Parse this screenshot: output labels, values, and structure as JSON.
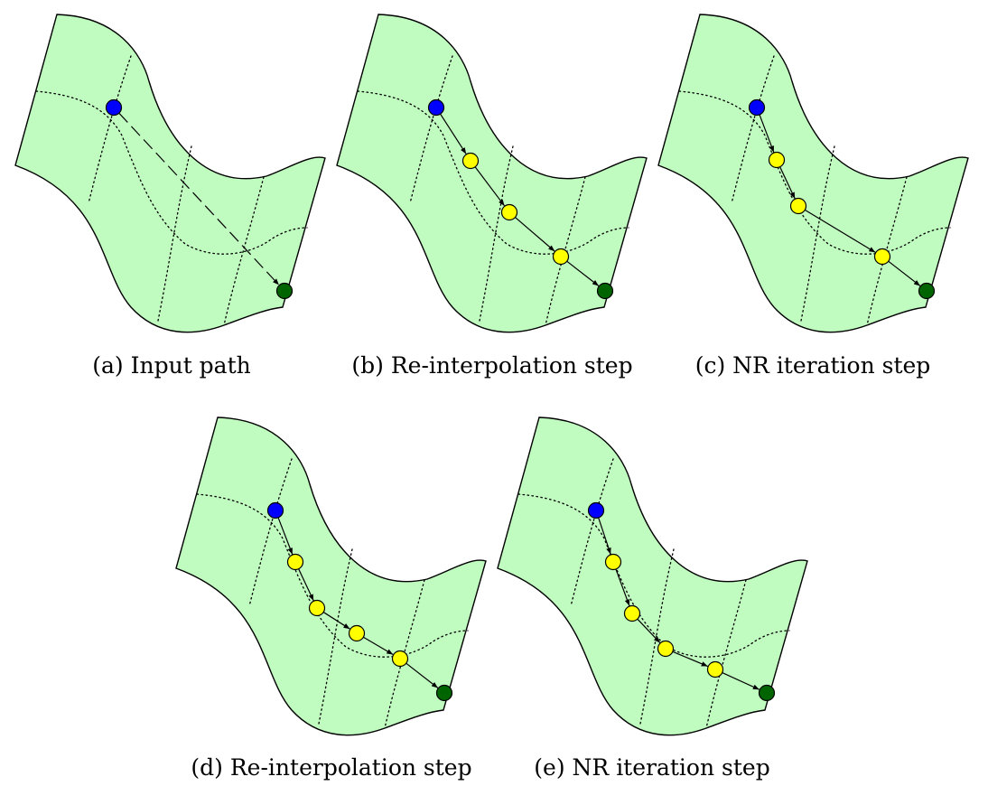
{
  "colors": {
    "surface": "#c0fbc0",
    "start_node": "#0000ff",
    "end_node": "#006400",
    "intermediate_node": "#ffff00"
  },
  "panels": [
    {
      "id": "a",
      "caption": "(a) Input path",
      "style": "dashed",
      "points": [
        [
          126,
          119
        ],
        [
          315,
          322
        ]
      ]
    },
    {
      "id": "b",
      "caption": "(b) Re-interpolation step",
      "style": "arrows",
      "points": [
        [
          483,
          119
        ],
        [
          521,
          178
        ],
        [
          564,
          235
        ],
        [
          621,
          284
        ],
        [
          670,
          322
        ]
      ]
    },
    {
      "id": "c",
      "caption": "(c) NR iteration step",
      "style": "arrows",
      "points": [
        [
          838,
          119
        ],
        [
          860,
          177
        ],
        [
          884,
          228
        ],
        [
          977,
          284
        ],
        [
          1026,
          322
        ]
      ]
    },
    {
      "id": "d",
      "caption": "(d) Re-interpolation step",
      "style": "arrows",
      "points": [
        [
          305,
          565
        ],
        [
          327,
          622
        ],
        [
          351,
          673
        ],
        [
          395,
          701
        ],
        [
          443,
          729
        ],
        [
          492,
          767
        ]
      ]
    },
    {
      "id": "e",
      "caption": "(e) NR iteration step",
      "style": "arrows",
      "points": [
        [
          660,
          565
        ],
        [
          679,
          622
        ],
        [
          700,
          679
        ],
        [
          737,
          718
        ],
        [
          792,
          741
        ],
        [
          849,
          767
        ]
      ]
    }
  ]
}
